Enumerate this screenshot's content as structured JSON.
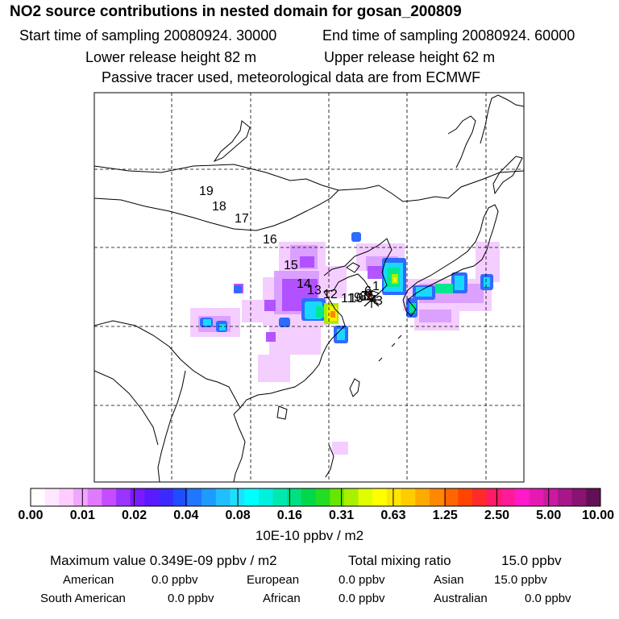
{
  "title": "NO2 source contributions in nested domain for gosan_200809",
  "start_time": "Start time of sampling 20080924. 30000",
  "end_time": "End time of sampling 20080924. 60000",
  "lower_release": "Lower release height   82 m",
  "upper_release": "Upper release height   62 m",
  "tracer_note": "Passive tracer used, meteorological data are from ECMWF",
  "trajectory_labels": [
    "19",
    "18",
    "17",
    "16",
    "15",
    "14",
    "13",
    "12",
    "11",
    "10",
    "9",
    "8",
    "7",
    "6",
    "5",
    "4",
    "3",
    "2",
    "1"
  ],
  "colorbar": {
    "tick_labels": [
      "0.00",
      "0.01",
      "0.02",
      "0.04",
      "0.08",
      "0.16",
      "0.31",
      "0.63",
      "1.25",
      "2.50",
      "5.00",
      "10.00"
    ],
    "unit": "10E-10 ppbv / m2",
    "colors": [
      "#ffffff",
      "#ffe6ff",
      "#ffccff",
      "#f2a6ff",
      "#e07aff",
      "#c54dff",
      "#9b33ff",
      "#7a1aff",
      "#5a1aff",
      "#3a2aff",
      "#1f4dff",
      "#1f77ff",
      "#1f9bff",
      "#1fbfff",
      "#1fdfff",
      "#00ffff",
      "#00f0e0",
      "#00e8b0",
      "#00e080",
      "#00d84a",
      "#22dd22",
      "#66e600",
      "#aaee00",
      "#dfff00",
      "#ffff00",
      "#ffe600",
      "#ffcc00",
      "#ffaa00",
      "#ff8800",
      "#ff6600",
      "#ff4400",
      "#ff2a2a",
      "#ff1a66",
      "#ff1a99",
      "#ff1acc",
      "#e61ab3",
      "#cc1aa0",
      "#a8168a",
      "#861470",
      "#640f55"
    ]
  },
  "summary": {
    "max_label": "Maximum value  0.349E-09 ppbv / m2",
    "total_label": "Total mixing ratio",
    "total_value": "15.0 ppbv"
  },
  "regions": [
    {
      "name": "American",
      "value": "0.0 ppbv"
    },
    {
      "name": "European",
      "value": "0.0 ppbv"
    },
    {
      "name": "Asian",
      "value": "15.0 ppbv"
    },
    {
      "name": "South American",
      "value": "0.0 ppbv"
    },
    {
      "name": "African",
      "value": "0.0 ppbv"
    },
    {
      "name": "Australian",
      "value": "0.0 ppbv"
    }
  ]
}
